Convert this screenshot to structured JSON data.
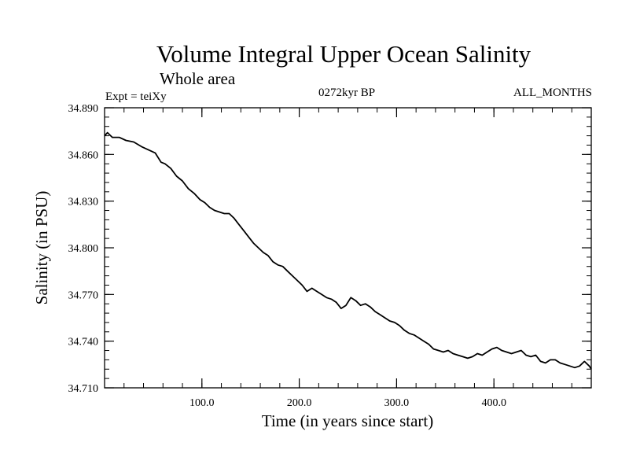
{
  "chart_data": {
    "type": "line",
    "title": "Volume Integral Upper Ocean Salinity",
    "subtitle": "Whole area",
    "left_label": "Expt = teiXy",
    "center_label": "0272kyr BP",
    "right_label": "ALL_MONTHS",
    "xlabel": "Time (in years since start)",
    "ylabel": "Salinity (in PSU)",
    "xlim": [
      0,
      500
    ],
    "ylim": [
      34.71,
      34.89
    ],
    "x_ticks": [
      {
        "value": 100,
        "label": "100.0"
      },
      {
        "value": 200,
        "label": "200.0"
      },
      {
        "value": 300,
        "label": "300.0"
      },
      {
        "value": 400,
        "label": "400.0"
      }
    ],
    "y_ticks": [
      {
        "value": 34.71,
        "label": "34.710"
      },
      {
        "value": 34.74,
        "label": "34.740"
      },
      {
        "value": 34.77,
        "label": "34.770"
      },
      {
        "value": 34.8,
        "label": "34.800"
      },
      {
        "value": 34.83,
        "label": "34.830"
      },
      {
        "value": 34.86,
        "label": "34.860"
      },
      {
        "value": 34.89,
        "label": "34.890"
      }
    ],
    "grid": false,
    "series": [
      {
        "color": "#000000",
        "x": [
          0,
          3,
          8,
          15,
          22,
          30,
          38,
          45,
          52,
          58,
          62,
          68,
          74,
          80,
          86,
          92,
          98,
          103,
          108,
          113,
          118,
          123,
          128,
          133,
          138,
          143,
          148,
          153,
          158,
          163,
          168,
          173,
          178,
          183,
          188,
          193,
          198,
          203,
          208,
          213,
          218,
          223,
          228,
          233,
          238,
          243,
          248,
          253,
          258,
          263,
          268,
          273,
          278,
          283,
          288,
          293,
          298,
          303,
          308,
          313,
          318,
          323,
          328,
          333,
          338,
          343,
          348,
          353,
          358,
          363,
          368,
          373,
          378,
          383,
          388,
          393,
          398,
          403,
          408,
          413,
          418,
          423,
          428,
          433,
          438,
          443,
          448,
          453,
          458,
          463,
          468,
          473,
          478,
          483,
          488,
          493,
          498,
          500
        ],
        "values": [
          34.872,
          34.874,
          34.871,
          34.871,
          34.869,
          34.868,
          34.865,
          34.863,
          34.861,
          34.855,
          34.854,
          34.851,
          34.846,
          34.843,
          34.838,
          34.835,
          34.831,
          34.829,
          34.826,
          34.824,
          34.823,
          34.822,
          34.822,
          34.819,
          34.815,
          34.811,
          34.807,
          34.803,
          34.8,
          34.797,
          34.795,
          34.791,
          34.789,
          34.788,
          34.785,
          34.782,
          34.779,
          34.776,
          34.772,
          34.774,
          34.772,
          34.77,
          34.768,
          34.767,
          34.765,
          34.761,
          34.763,
          34.768,
          34.766,
          34.763,
          34.764,
          34.762,
          34.759,
          34.757,
          34.755,
          34.753,
          34.752,
          34.75,
          34.747,
          34.745,
          34.744,
          34.742,
          34.74,
          34.738,
          34.735,
          34.734,
          34.733,
          34.734,
          34.732,
          34.731,
          34.73,
          34.729,
          34.73,
          34.732,
          34.731,
          34.733,
          34.735,
          34.736,
          34.734,
          34.733,
          34.732,
          34.733,
          34.734,
          34.731,
          34.73,
          34.731,
          34.727,
          34.726,
          34.728,
          34.728,
          34.726,
          34.725,
          34.724,
          34.723,
          34.724,
          34.727,
          34.724,
          34.722
        ]
      }
    ]
  }
}
